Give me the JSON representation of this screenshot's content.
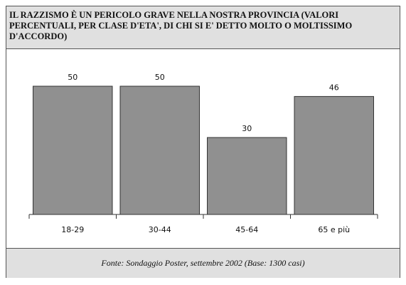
{
  "chart_data": {
    "type": "bar",
    "title": "IL RAZZISMO È UN PERICOLO GRAVE NELLA NOSTRA PROVINCIA (VALORI PERCENTUALI, PER CLASE D'ETA', DI CHI SI E' DETTO MOLTO O MOLTISSIMO D'ACCORDO)",
    "categories": [
      "18-29",
      "30-44",
      "45-64",
      "65 e più"
    ],
    "values": [
      50,
      50,
      30,
      46
    ],
    "color": "#909090",
    "ylim": [
      0,
      55
    ],
    "source": "Fonte: Sondaggio Poster, settembre 2002 (Base: 1300 casi)"
  }
}
